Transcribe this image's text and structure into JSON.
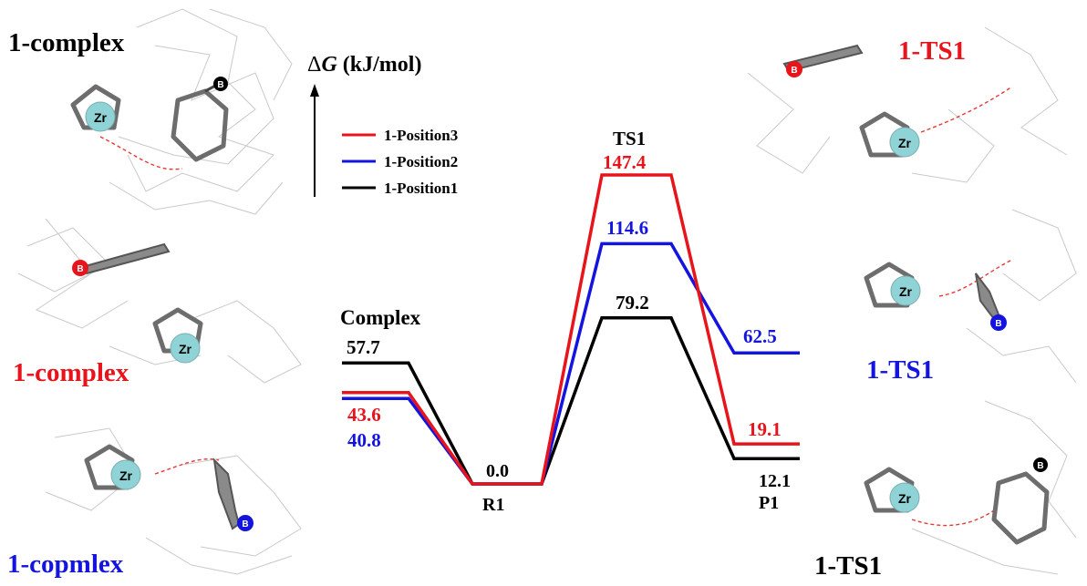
{
  "colors": {
    "red": "#e8141b",
    "blue": "#1414e0",
    "black": "#000000",
    "zr_atom": "#8fd3d6",
    "fluorine": "#7fd6d9"
  },
  "axis": {
    "label_prefix": "Δ",
    "label_var": "G",
    "label_unit": " (kJ/mol)"
  },
  "legend": [
    {
      "name": "1-Position3",
      "color": "#e8141b"
    },
    {
      "name": "1-Position2",
      "color": "#1414e0"
    },
    {
      "name": "1-Position1",
      "color": "#000000"
    }
  ],
  "states": {
    "complex": "Complex",
    "r1": "R1",
    "ts1": "TS1",
    "p1": "P1"
  },
  "structures": {
    "top_left": "1-complex",
    "mid_left": "1-complex",
    "bottom_left": "1-copmlex",
    "top_right": "1-TS1",
    "mid_right": "1-TS1",
    "bottom_right": "1-TS1",
    "atom_zr": "Zr",
    "atom_b": "B"
  },
  "chart_data": {
    "type": "line",
    "title": "",
    "ylabel": "ΔG (kJ/mol)",
    "categories": [
      "Complex",
      "R1",
      "TS1",
      "P1"
    ],
    "series": [
      {
        "name": "1-Position3",
        "color": "#e8141b",
        "values": [
          43.6,
          0.0,
          147.4,
          19.1
        ],
        "labels": [
          "43.6",
          "0.0",
          "147.4",
          "19.1"
        ]
      },
      {
        "name": "1-Position2",
        "color": "#1414e0",
        "values": [
          40.8,
          0.0,
          114.6,
          62.5
        ],
        "labels": [
          "40.8",
          "0.0",
          "114.6",
          "62.5"
        ]
      },
      {
        "name": "1-Position1",
        "color": "#000000",
        "values": [
          57.7,
          0.0,
          79.2,
          12.1
        ],
        "labels": [
          "57.7",
          "0.0",
          "79.2",
          "12.1"
        ]
      }
    ]
  }
}
